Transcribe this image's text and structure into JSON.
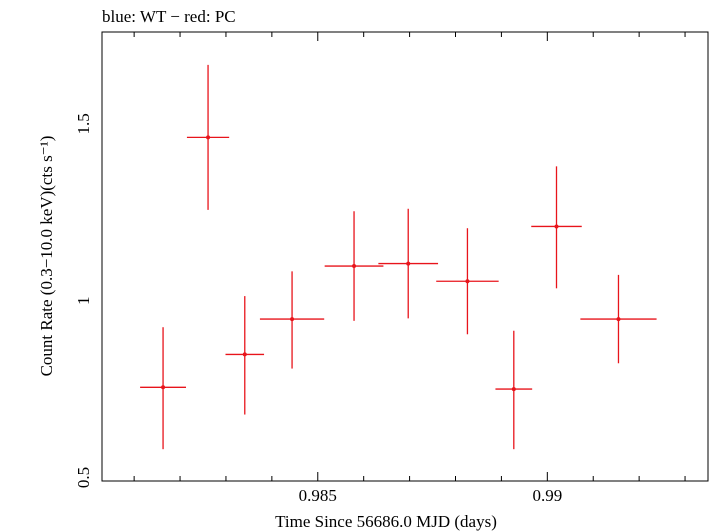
{
  "chart_data": {
    "type": "scatter",
    "title": "blue: WT − red: PC",
    "xlabel": "Time Since 56686.0 MJD (days)",
    "ylabel": "Count Rate (0.3−10.0 keV)(cts s⁻¹)",
    "xlim": [
      0.9803,
      0.9935
    ],
    "ylim": [
      0.49,
      1.76
    ],
    "x_ticks": [
      {
        "value": 0.985,
        "label": "0.985"
      },
      {
        "value": 0.99,
        "label": "0.99"
      }
    ],
    "y_ticks": [
      {
        "value": 0.5,
        "label": "0.5"
      },
      {
        "value": 1.0,
        "label": "1"
      },
      {
        "value": 1.5,
        "label": "1.5"
      }
    ],
    "grid": false,
    "series": [
      {
        "color": "#e8141b",
        "points": [
          {
            "x": 0.98163,
            "xerr": 0.0005,
            "y": 0.755,
            "yerr_lo": 0.175,
            "yerr_hi": 0.17
          },
          {
            "x": 0.98261,
            "xerr": 0.00046,
            "y": 1.462,
            "yerr_lo": 0.205,
            "yerr_hi": 0.205
          },
          {
            "x": 0.98341,
            "xerr": 0.00042,
            "y": 0.848,
            "yerr_lo": 0.17,
            "yerr_hi": 0.165
          },
          {
            "x": 0.98444,
            "xerr": 0.0007,
            "y": 0.948,
            "yerr_lo": 0.14,
            "yerr_hi": 0.135
          },
          {
            "x": 0.98579,
            "xerr": 0.00064,
            "y": 1.098,
            "yerr_lo": 0.155,
            "yerr_hi": 0.155
          },
          {
            "x": 0.98697,
            "xerr": 0.00065,
            "y": 1.105,
            "yerr_lo": 0.155,
            "yerr_hi": 0.155
          },
          {
            "x": 0.98826,
            "xerr": 0.00068,
            "y": 1.055,
            "yerr_lo": 0.15,
            "yerr_hi": 0.15
          },
          {
            "x": 0.98927,
            "xerr": 0.0004,
            "y": 0.75,
            "yerr_lo": 0.17,
            "yerr_hi": 0.165
          },
          {
            "x": 0.9902,
            "xerr": 0.00055,
            "y": 1.21,
            "yerr_lo": 0.175,
            "yerr_hi": 0.17
          },
          {
            "x": 0.99155,
            "xerr": 0.00083,
            "y": 0.948,
            "yerr_lo": 0.125,
            "yerr_hi": 0.125
          }
        ]
      }
    ]
  }
}
